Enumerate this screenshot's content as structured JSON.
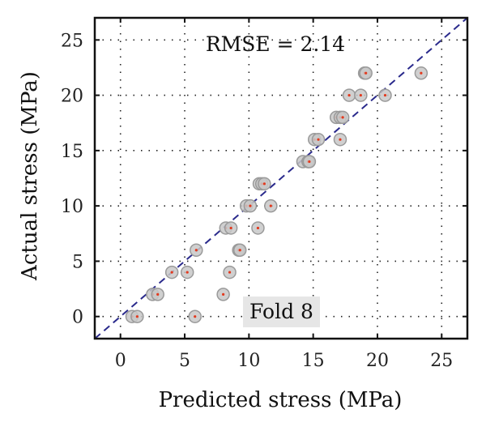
{
  "chart_data": {
    "type": "scatter",
    "xlabel": "Predicted stress (MPa)",
    "ylabel": "Actual stress (MPa)",
    "xlim": [
      -2,
      27
    ],
    "ylim": [
      -2,
      27
    ],
    "xticks": [
      0,
      5,
      10,
      15,
      20,
      25
    ],
    "yticks": [
      0,
      5,
      10,
      15,
      20,
      25
    ],
    "grid": true,
    "annotations": {
      "rmse": "RMSE = 2.14",
      "fold": "Fold 8"
    },
    "reference_line": "y = x",
    "colors": {
      "marker_fill": "#c8c8c8",
      "marker_edge": "#9a9a9a",
      "marker_center": "#e23a1f",
      "diagonal": "#2a2a8c",
      "fold_box": "#e6e6e6"
    },
    "points": [
      {
        "x": 0.9,
        "y": 0.0
      },
      {
        "x": 1.3,
        "y": 0.0
      },
      {
        "x": 5.8,
        "y": 0.0
      },
      {
        "x": 8.0,
        "y": 2.0
      },
      {
        "x": 2.5,
        "y": 2.0
      },
      {
        "x": 2.9,
        "y": 2.0
      },
      {
        "x": 4.0,
        "y": 4.0
      },
      {
        "x": 5.2,
        "y": 4.0
      },
      {
        "x": 8.5,
        "y": 4.0
      },
      {
        "x": 5.9,
        "y": 6.0
      },
      {
        "x": 9.2,
        "y": 6.0
      },
      {
        "x": 9.3,
        "y": 6.0
      },
      {
        "x": 8.2,
        "y": 8.0
      },
      {
        "x": 8.6,
        "y": 8.0
      },
      {
        "x": 10.7,
        "y": 8.0
      },
      {
        "x": 9.8,
        "y": 10.0
      },
      {
        "x": 10.1,
        "y": 10.0
      },
      {
        "x": 11.7,
        "y": 10.0
      },
      {
        "x": 10.8,
        "y": 12.0
      },
      {
        "x": 11.0,
        "y": 12.0
      },
      {
        "x": 11.2,
        "y": 12.0
      },
      {
        "x": 14.2,
        "y": 14.0
      },
      {
        "x": 14.6,
        "y": 14.0
      },
      {
        "x": 14.7,
        "y": 14.0
      },
      {
        "x": 15.1,
        "y": 16.0
      },
      {
        "x": 15.4,
        "y": 16.0
      },
      {
        "x": 17.1,
        "y": 16.0
      },
      {
        "x": 16.8,
        "y": 18.0
      },
      {
        "x": 17.1,
        "y": 18.0
      },
      {
        "x": 17.3,
        "y": 18.0
      },
      {
        "x": 17.8,
        "y": 20.0
      },
      {
        "x": 18.7,
        "y": 20.0
      },
      {
        "x": 20.6,
        "y": 20.0
      },
      {
        "x": 19.0,
        "y": 22.0
      },
      {
        "x": 19.1,
        "y": 22.0
      },
      {
        "x": 23.4,
        "y": 22.0
      }
    ]
  }
}
